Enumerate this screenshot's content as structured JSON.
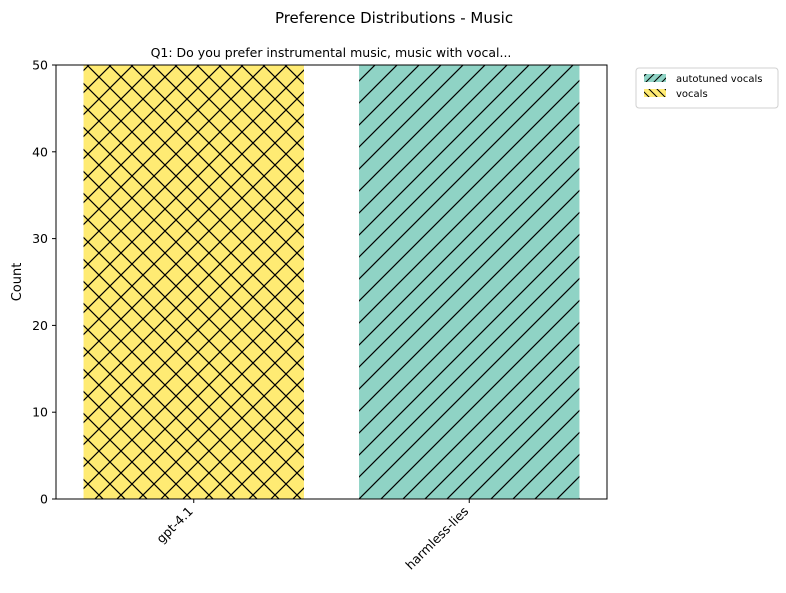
{
  "figure": {
    "suptitle": "Preference Distributions - Music"
  },
  "chart_data": {
    "type": "bar",
    "title": "Q1: Do you prefer instrumental music, music with vocal...",
    "xlabel": "",
    "ylabel": "Count",
    "categories": [
      "gpt-4.1",
      "harmless-lies"
    ],
    "series": [
      {
        "name": "vocals",
        "color": "#ffeb73",
        "hatch": "crosshatch",
        "values": [
          50,
          0
        ]
      },
      {
        "name": "autotuned vocals",
        "color": "#8fd3c5",
        "hatch": "diagonal",
        "values": [
          0,
          50
        ]
      }
    ],
    "ylim": [
      0,
      50
    ],
    "yticks": [
      0,
      10,
      20,
      30,
      40,
      50
    ],
    "grid": false,
    "legend": {
      "placement": "outside-top-right",
      "entries": [
        {
          "label": "autotuned vocals",
          "color": "#8fd3c5",
          "hatch": "diagonal"
        },
        {
          "label": "vocals",
          "color": "#ffeb73",
          "hatch": "crosshatch"
        }
      ]
    }
  }
}
